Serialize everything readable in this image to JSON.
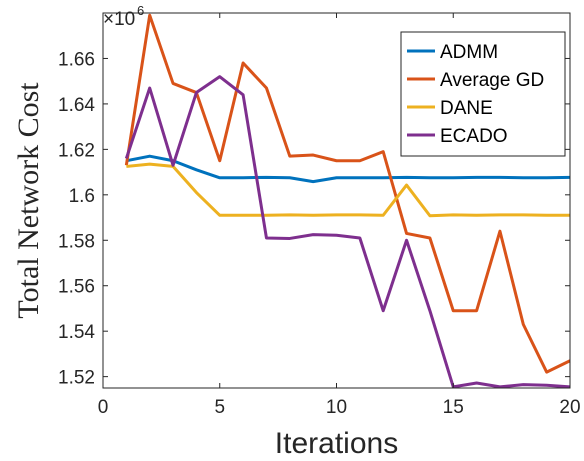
{
  "chart_data": {
    "type": "line",
    "title": "",
    "xlabel": "Iterations",
    "ylabel": "Total Network Cost",
    "y_exponent_label": "×10",
    "y_exponent_power": "6",
    "xlim": [
      0,
      20
    ],
    "ylim": [
      1.515,
      1.68
    ],
    "x_ticks": [
      0,
      5,
      10,
      15,
      20
    ],
    "x_tick_labels": [
      "0",
      "5",
      "10",
      "15",
      "20"
    ],
    "y_ticks": [
      1.52,
      1.54,
      1.56,
      1.58,
      1.6,
      1.62,
      1.64,
      1.66
    ],
    "y_tick_labels": [
      "1.52",
      "1.54",
      "1.56",
      "1.58",
      "1.6",
      "1.62",
      "1.64",
      "1.66"
    ],
    "grid": false,
    "legend_position": "top-right",
    "x": [
      1,
      2,
      3,
      4,
      5,
      6,
      7,
      8,
      9,
      10,
      11,
      12,
      13,
      14,
      15,
      16,
      17,
      18,
      19,
      20
    ],
    "series": [
      {
        "name": "ADMM",
        "color": "#0072BD",
        "values": [
          1.615,
          1.617,
          1.615,
          1.611,
          1.6075,
          1.6075,
          1.6077,
          1.6075,
          1.6058,
          1.6075,
          1.6075,
          1.6075,
          1.6077,
          1.6075,
          1.6075,
          1.6077,
          1.6077,
          1.6075,
          1.6075,
          1.6077
        ]
      },
      {
        "name": "Average GD",
        "color": "#D95319",
        "values": [
          1.613,
          1.679,
          1.649,
          1.645,
          1.615,
          1.658,
          1.647,
          1.617,
          1.6175,
          1.615,
          1.615,
          1.619,
          1.583,
          1.581,
          1.549,
          1.549,
          1.584,
          1.543,
          1.522,
          1.527
        ]
      },
      {
        "name": "DANE",
        "color": "#EDB120",
        "values": [
          1.6125,
          1.6135,
          1.6125,
          1.601,
          1.591,
          1.591,
          1.591,
          1.5912,
          1.591,
          1.5912,
          1.5912,
          1.591,
          1.6043,
          1.5908,
          1.5912,
          1.591,
          1.5912,
          1.5912,
          1.591,
          1.591
        ]
      },
      {
        "name": "ECADO",
        "color": "#7E2F8E",
        "values": [
          1.616,
          1.647,
          1.613,
          1.645,
          1.652,
          1.644,
          1.581,
          1.5808,
          1.5825,
          1.5822,
          1.581,
          1.549,
          1.58,
          1.549,
          1.5155,
          1.5172,
          1.5155,
          1.5165,
          1.5162,
          1.5155
        ]
      }
    ]
  }
}
